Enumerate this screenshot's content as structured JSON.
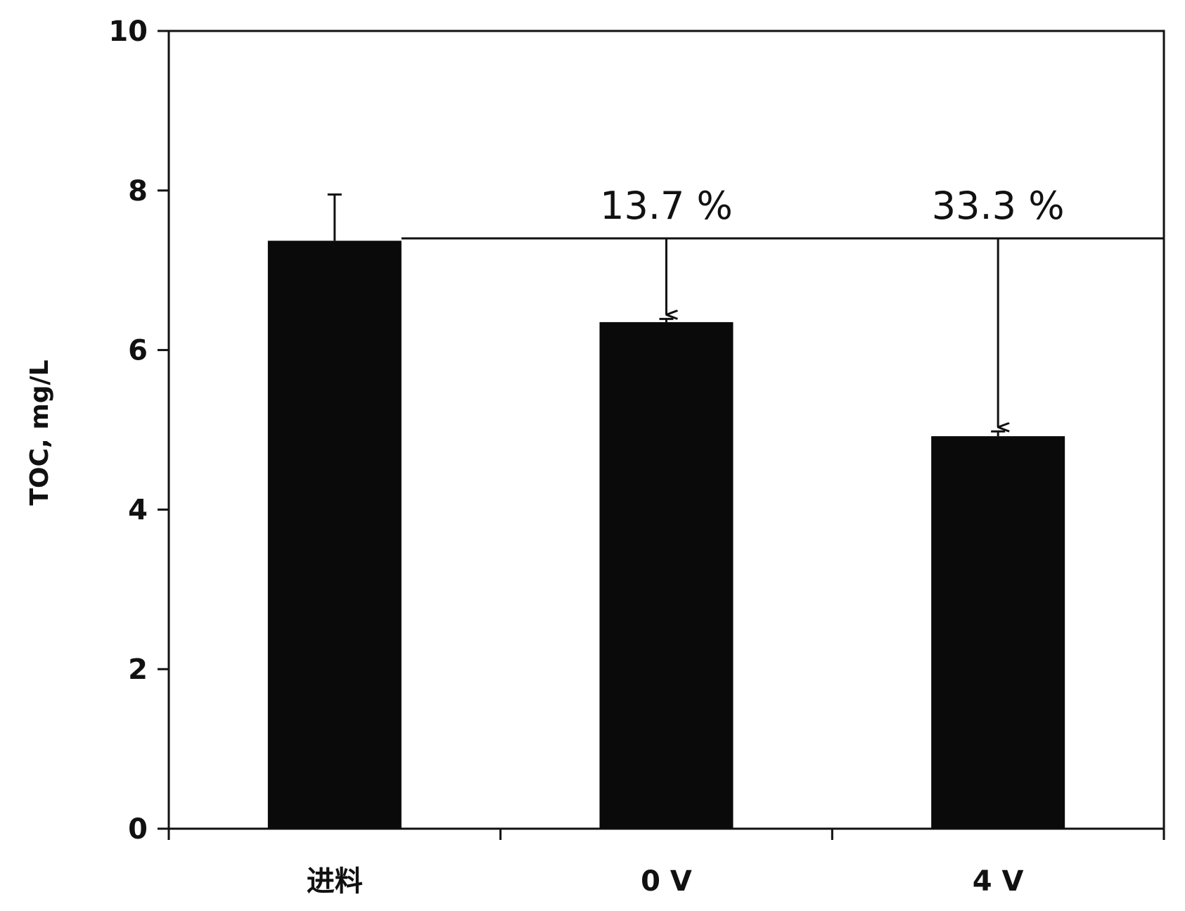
{
  "chart_data": {
    "type": "bar",
    "title": "",
    "xlabel": "",
    "ylabel": "TOC, mg/L",
    "ylim": [
      0,
      10
    ],
    "yticks": [
      0,
      2,
      4,
      6,
      8,
      10
    ],
    "categories": [
      "进料",
      "0 V",
      "4 V"
    ],
    "values": [
      7.37,
      6.35,
      4.92
    ],
    "error_bars": [
      0.58,
      0.04,
      0.06
    ],
    "bar_color": "#0a0a0a",
    "grid": false,
    "reference_line": {
      "y": 7.4
    },
    "annotations": [
      {
        "text": "13.7 %",
        "category": "0 V"
      },
      {
        "text": "33.3 %",
        "category": "4 V"
      }
    ]
  }
}
